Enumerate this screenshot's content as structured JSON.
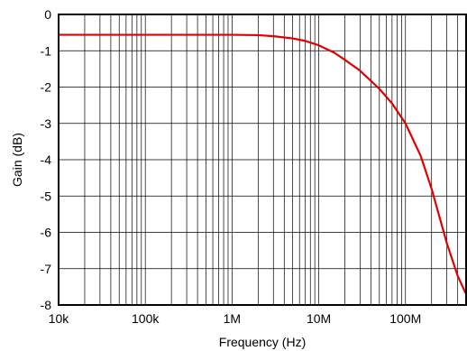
{
  "chart_data": {
    "type": "line",
    "title": "",
    "xlabel": "Frequency (Hz)",
    "ylabel": "Gain (dB)",
    "x_scale": "log",
    "xlim": [
      10000,
      500000000
    ],
    "ylim": [
      -8,
      0
    ],
    "grid": true,
    "x_ticks": [
      {
        "value": 10000,
        "label": "10k"
      },
      {
        "value": 100000,
        "label": "100k"
      },
      {
        "value": 1000000,
        "label": "1M"
      },
      {
        "value": 10000000,
        "label": "10M"
      },
      {
        "value": 100000000,
        "label": "100M"
      }
    ],
    "y_ticks": [
      {
        "value": 0,
        "label": "0"
      },
      {
        "value": -1,
        "label": "-1"
      },
      {
        "value": -2,
        "label": "-2"
      },
      {
        "value": -3,
        "label": "-3"
      },
      {
        "value": -4,
        "label": "-4"
      },
      {
        "value": -5,
        "label": "-5"
      },
      {
        "value": -6,
        "label": "-6"
      },
      {
        "value": -7,
        "label": "-7"
      },
      {
        "value": -8,
        "label": "-8"
      }
    ],
    "series": [
      {
        "color": "#e00000",
        "x": [
          10000,
          100000,
          1000000,
          2000000,
          3000000,
          5000000,
          7000000,
          10000000,
          15000000,
          20000000,
          30000000,
          50000000,
          70000000,
          100000000,
          150000000,
          200000000,
          300000000,
          400000000,
          500000000
        ],
        "y": [
          -0.56,
          -0.56,
          -0.56,
          -0.57,
          -0.6,
          -0.66,
          -0.73,
          -0.85,
          -1.05,
          -1.25,
          -1.55,
          -2.05,
          -2.45,
          -3.0,
          -3.9,
          -4.8,
          -6.3,
          -7.2,
          -7.7
        ]
      }
    ]
  }
}
